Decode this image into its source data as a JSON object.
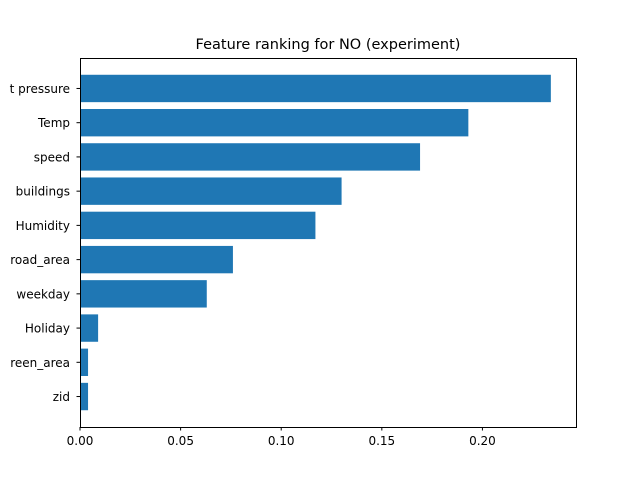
{
  "chart_data": {
    "type": "bar",
    "orientation": "horizontal",
    "title": "Feature ranking for NO (experiment)",
    "xlabel": "",
    "ylabel": "",
    "categories": [
      "t pressure",
      "Temp",
      "speed",
      "buildings",
      "Humidity",
      "road_area",
      "weekday",
      "Holiday",
      "reen_area",
      "zid"
    ],
    "values": [
      0.234,
      0.193,
      0.169,
      0.13,
      0.117,
      0.076,
      0.063,
      0.009,
      0.004,
      0.004
    ],
    "xlim": [
      0,
      0.2465
    ],
    "xticks": [
      0.0,
      0.05,
      0.1,
      0.15,
      0.2
    ],
    "xtick_labels": [
      "0.00",
      "0.05",
      "0.10",
      "0.15",
      "0.20"
    ],
    "grid": false,
    "bar_color": "#1f77b4"
  }
}
